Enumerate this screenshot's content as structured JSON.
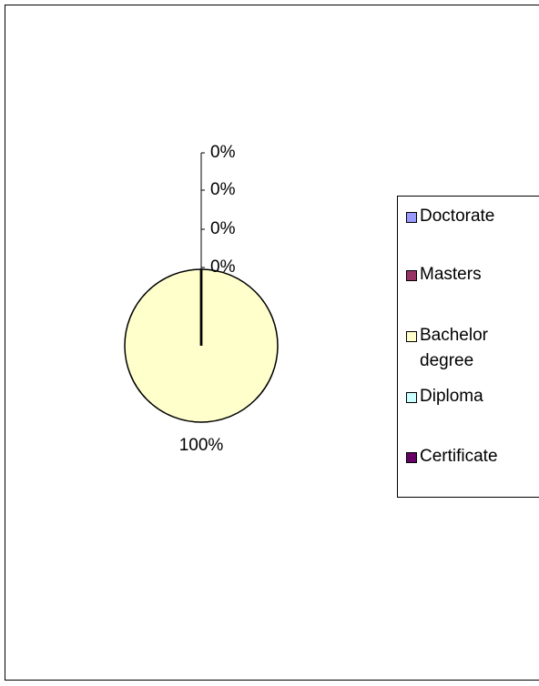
{
  "chart_data": {
    "type": "pie",
    "categories": [
      "Doctorate",
      "Masters",
      "Bachelor degree",
      "Diploma",
      "Certificate"
    ],
    "values": [
      0,
      0,
      100,
      0,
      0
    ],
    "value_labels": [
      "0%",
      "0%",
      "100%",
      "0%",
      "0%"
    ],
    "colors": [
      "#9999ff",
      "#993366",
      "#ffffcc",
      "#ccffff",
      "#660066"
    ],
    "legend": "right"
  }
}
